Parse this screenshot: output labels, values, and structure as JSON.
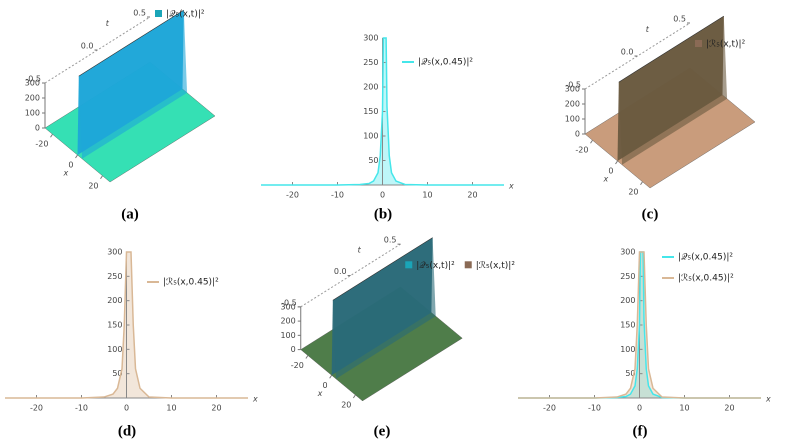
{
  "chart_data": [
    {
      "type": "surface3d",
      "caption": "(a)",
      "surface_color": "#35e0b4",
      "wall_color": "#1ea6d8",
      "series": [
        {
          "name": "|𝒬₅(x,t)|²",
          "color": "#1aa5b8"
        }
      ],
      "xlabel": "x",
      "tlabel": "t",
      "xticks": [
        -20,
        0,
        20
      ],
      "tticks": [
        0.5,
        {
          "value": 0,
          "label": "0.0"
        },
        -0.5
      ],
      "zticks": [
        0,
        100,
        200,
        300
      ]
    },
    {
      "type": "line",
      "caption": "(b)",
      "xlabel": "x",
      "x": [
        -27,
        -20,
        -10,
        -5,
        -3,
        -2,
        -1,
        -0.5,
        0,
        0.2,
        0.4,
        0.5,
        0.6,
        0.8,
        1,
        1.5,
        2,
        3,
        5,
        10,
        20,
        27
      ],
      "series": [
        {
          "name": "|𝒬₅(x,0.45)|²",
          "color": "#45e6ea",
          "values": [
            0,
            0,
            0,
            1,
            3,
            8,
            25,
            60,
            150,
            300,
            300,
            300,
            300,
            300,
            160,
            60,
            25,
            8,
            1,
            0,
            0,
            0
          ]
        }
      ],
      "xlim": [
        -27,
        27
      ],
      "ylim": [
        0,
        300
      ],
      "xticks": [
        -20,
        -10,
        0,
        10,
        20
      ],
      "yticks": [
        50,
        100,
        150,
        200,
        250,
        300
      ]
    },
    {
      "type": "surface3d",
      "caption": "(c)",
      "surface_color": "#c99c7c",
      "wall_color": "#6a5a40",
      "series": [
        {
          "name": "|ℛ₅(x,t)|²",
          "color": "#8a6a55"
        }
      ],
      "xlabel": "x",
      "tlabel": "t",
      "xticks": [
        -20,
        0,
        20
      ],
      "tticks": [
        0.5,
        {
          "value": 0,
          "label": "0.0"
        },
        -0.5
      ],
      "zticks": [
        0,
        100,
        200,
        300
      ]
    },
    {
      "type": "line",
      "caption": "(d)",
      "xlabel": "x",
      "x": [
        -27,
        -20,
        -10,
        -5,
        -3,
        -2,
        -1,
        -0.5,
        0,
        0.2,
        0.4,
        0.5,
        0.6,
        0.8,
        1,
        1.5,
        2,
        3,
        5,
        10,
        20,
        27
      ],
      "series": [
        {
          "name": "|ℛ₅(x,0.45)|²",
          "color": "#d9b896",
          "values": [
            0,
            0,
            0,
            2,
            8,
            20,
            60,
            150,
            300,
            300,
            300,
            300,
            300,
            300,
            300,
            150,
            60,
            20,
            2,
            0,
            0,
            0
          ]
        }
      ],
      "xlim": [
        -27,
        27
      ],
      "ylim": [
        0,
        300
      ],
      "xticks": [
        -20,
        -10,
        0,
        10,
        20
      ],
      "yticks": [
        50,
        100,
        150,
        200,
        250,
        300
      ]
    },
    {
      "type": "surface3d",
      "caption": "(e)",
      "surface_color": "#4f7d4a",
      "wall_color": "#2a6a78",
      "series": [
        {
          "name": "|𝒬₅(x,t)|²",
          "color": "#1aa5b8"
        },
        {
          "name": "|ℛ₅(x,t)|²",
          "color": "#8a6a55"
        }
      ],
      "xlabel": "x",
      "tlabel": "t",
      "xticks": [
        -20,
        0,
        20
      ],
      "tticks": [
        0.5,
        {
          "value": 0,
          "label": "0.0"
        },
        -0.5
      ],
      "zticks": [
        0,
        100,
        200,
        300
      ]
    },
    {
      "type": "line",
      "caption": "(f)",
      "xlabel": "x",
      "x": [
        -27,
        -20,
        -10,
        -5,
        -3,
        -2,
        -1,
        -0.5,
        0,
        0.2,
        0.4,
        0.5,
        0.6,
        0.8,
        1,
        1.5,
        2,
        3,
        5,
        10,
        20,
        27
      ],
      "series": [
        {
          "name": "|𝒬₅(x,0.45)|²",
          "color": "#45e6ea",
          "values": [
            0,
            0,
            0,
            1,
            3,
            8,
            25,
            60,
            150,
            300,
            300,
            300,
            300,
            300,
            160,
            60,
            25,
            8,
            1,
            0,
            0,
            0
          ]
        },
        {
          "name": "|ℛ₅(x,0.45)|²",
          "color": "#d9b896",
          "values": [
            0,
            0,
            0,
            2,
            8,
            20,
            60,
            150,
            300,
            300,
            300,
            300,
            300,
            300,
            300,
            150,
            60,
            20,
            2,
            0,
            0,
            0
          ]
        }
      ],
      "xlim": [
        -27,
        27
      ],
      "ylim": [
        0,
        300
      ],
      "xticks": [
        -20,
        -10,
        0,
        10,
        20
      ],
      "yticks": [
        50,
        100,
        150,
        200,
        250,
        300
      ]
    }
  ]
}
